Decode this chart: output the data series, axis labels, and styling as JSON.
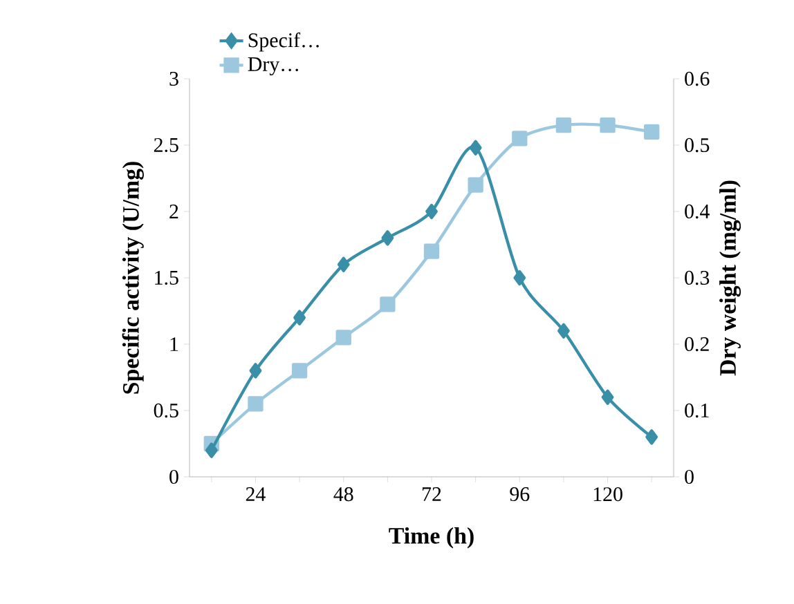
{
  "chart_data": {
    "type": "line",
    "xlabel": "Time (h)",
    "ylabel": "Specific activity (U/mg)",
    "y2label": "Dry weight (mg/ml)",
    "categories": [
      null,
      "24",
      null,
      "48",
      null,
      "72",
      null,
      "96",
      null,
      "120",
      null
    ],
    "series": [
      {
        "name": "Specif…",
        "color": "#3a8fa8",
        "marker": "diamond",
        "values": [
          0.2,
          0.8,
          1.2,
          1.6,
          1.8,
          2.0,
          2.48,
          1.5,
          1.1,
          0.6,
          0.3
        ]
      },
      {
        "name": "Dry…",
        "color": "#9cc8df",
        "marker": "square",
        "axis": "y2",
        "values": [
          0.05,
          0.11,
          0.16,
          0.21,
          0.26,
          0.34,
          0.44,
          0.51,
          0.53,
          0.53,
          0.52
        ]
      }
    ],
    "ylim": [
      0,
      3
    ],
    "yticks": [
      0,
      0.5,
      1,
      1.5,
      2,
      2.5,
      3
    ],
    "y2lim": [
      0,
      0.6
    ],
    "y2ticks": [
      0,
      0.1,
      0.2,
      0.3,
      0.4,
      0.5,
      0.6
    ],
    "legend": "top",
    "grid": false
  }
}
